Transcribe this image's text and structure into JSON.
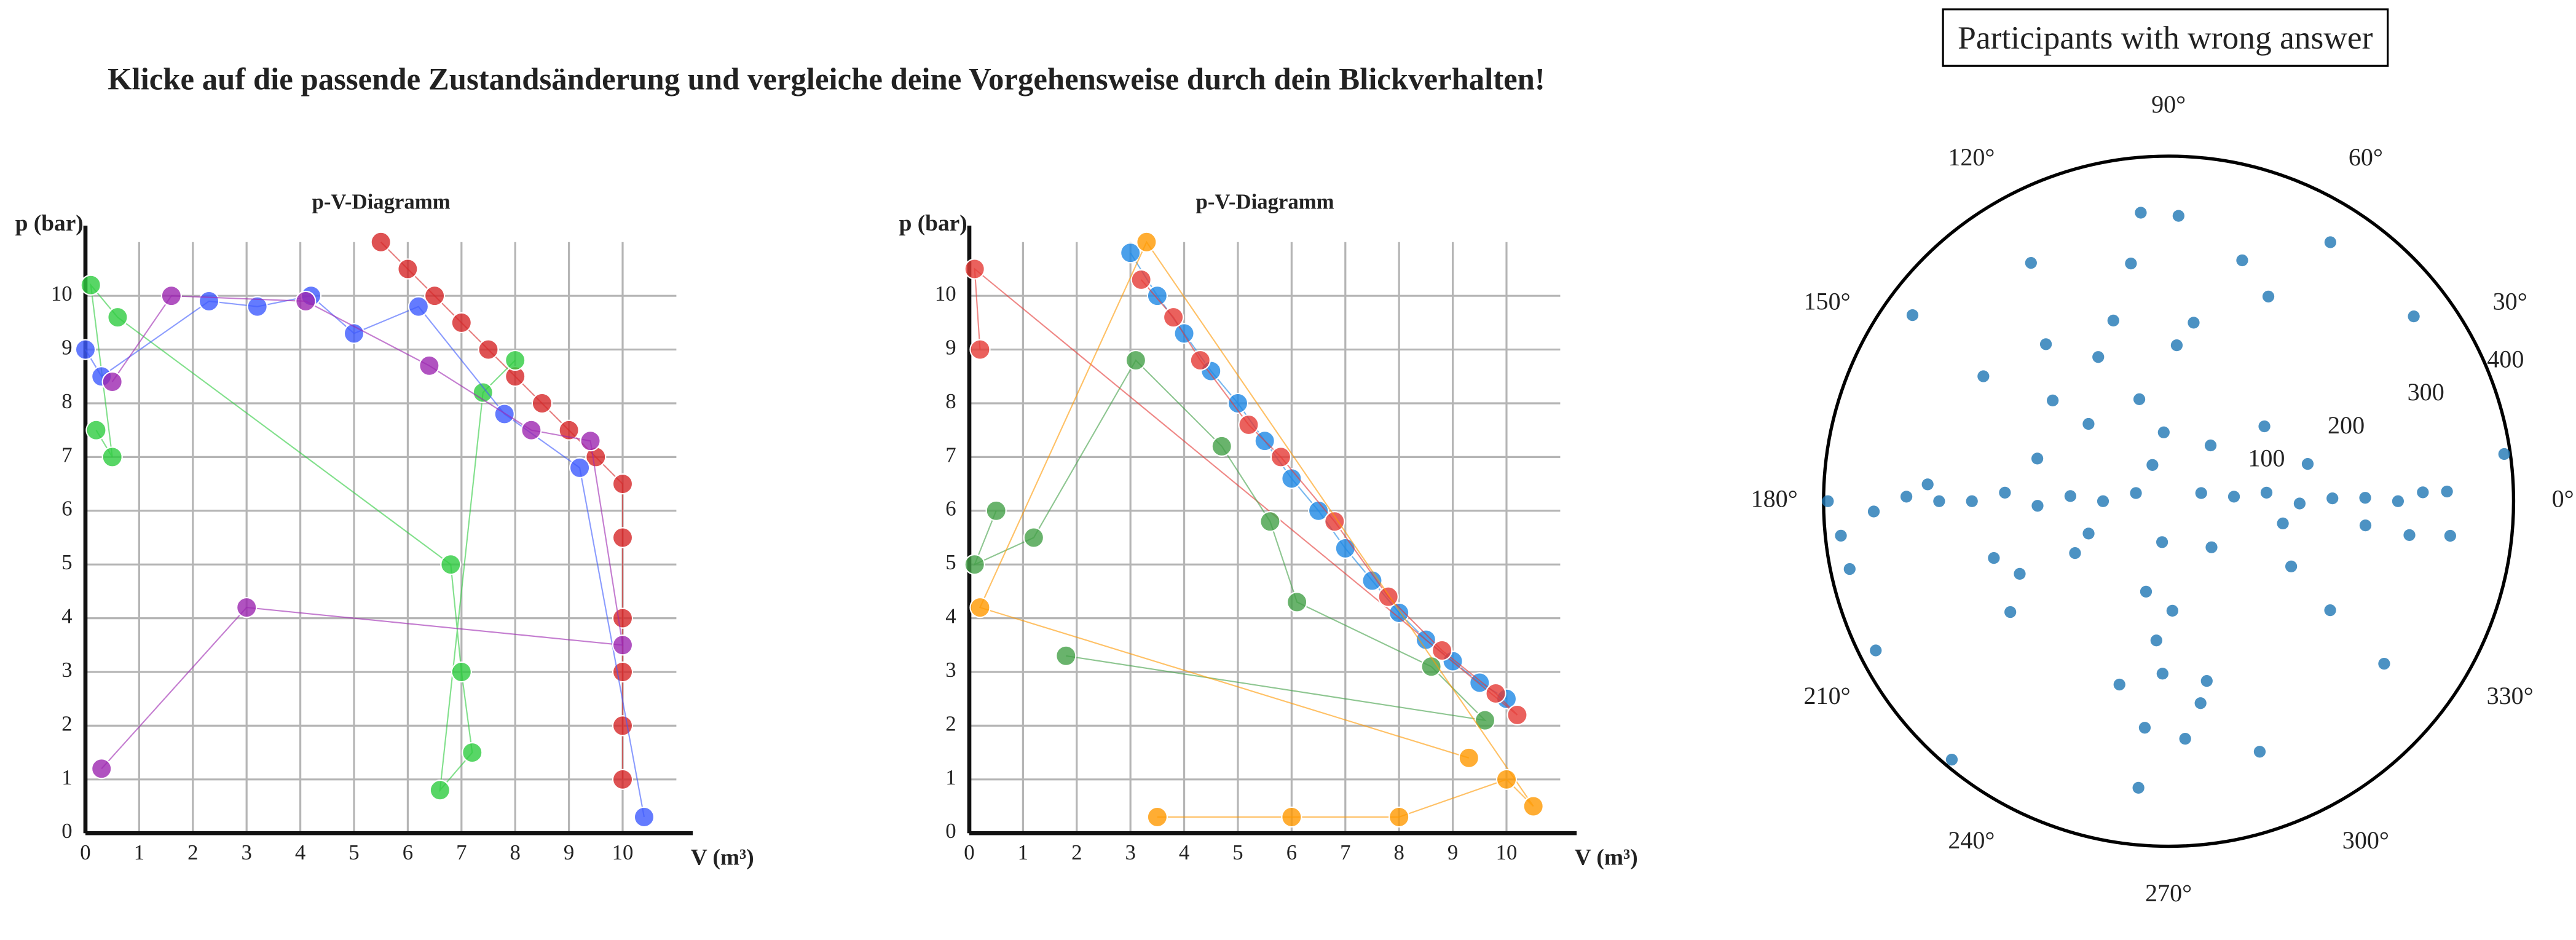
{
  "stimulus": {
    "title": "Klicke auf die passende Zustandsänderung und vergleiche deine Vorgehensweise durch dein Blickverhalten!"
  },
  "chart_data": [
    {
      "type": "scanpath",
      "title": "p-V-Diagramm",
      "y_label": "p (bar)",
      "x_label": "V (m³)",
      "xlim": [
        0,
        11
      ],
      "ylim": [
        0,
        11
      ],
      "xticks": [
        0,
        1,
        2,
        3,
        4,
        5,
        6,
        7,
        8,
        9,
        10
      ],
      "yticks": [
        0,
        1,
        2,
        3,
        4,
        5,
        6,
        7,
        8,
        9,
        10
      ],
      "grid": true,
      "series": [
        {
          "color": "#d62728",
          "x": [
            5.5,
            6,
            6.5,
            7,
            7.5,
            8,
            8.5,
            9,
            9.5,
            10,
            10,
            10,
            10,
            10,
            10
          ],
          "values": [
            11,
            10.5,
            10,
            9.5,
            9,
            8.5,
            8,
            7.5,
            7,
            6.5,
            5.5,
            4,
            3,
            2,
            1
          ]
        },
        {
          "color": "#2ecc40",
          "x": [
            0.2,
            0.5,
            0.1,
            0.6,
            6.8,
            7,
            7.2,
            6.6,
            7.4,
            8
          ],
          "values": [
            7.5,
            7,
            10.2,
            9.6,
            5,
            3,
            1.5,
            0.8,
            8.2,
            8.8
          ]
        },
        {
          "color": "#3d5afe",
          "x": [
            0,
            0.3,
            2.3,
            3.2,
            4.2,
            5,
            6.2,
            7.8,
            9.2,
            10.4
          ],
          "values": [
            9,
            8.5,
            9.9,
            9.8,
            10,
            9.3,
            9.8,
            7.8,
            6.8,
            0.3
          ]
        },
        {
          "color": "#9c27b0",
          "x": [
            0.5,
            1.6,
            4.1,
            6.4,
            8.3,
            9.4,
            10,
            3,
            0.3
          ],
          "values": [
            8.4,
            10,
            9.9,
            8.7,
            7.5,
            7.3,
            3.5,
            4.2,
            1.2
          ]
        }
      ]
    },
    {
      "type": "scanpath",
      "title": "p-V-Diagramm",
      "y_label": "p (bar)",
      "x_label": "V (m³)",
      "xlim": [
        0,
        11
      ],
      "ylim": [
        0,
        11
      ],
      "xticks": [
        0,
        1,
        2,
        3,
        4,
        5,
        6,
        7,
        8,
        9,
        10
      ],
      "yticks": [
        0,
        1,
        2,
        3,
        4,
        5,
        6,
        7,
        8,
        9,
        10
      ],
      "grid": true,
      "series": [
        {
          "color": "#1e88e5",
          "x": [
            3,
            3.5,
            4,
            4.5,
            5,
            5.5,
            6,
            6.5,
            7,
            7.5,
            8,
            8.5,
            9,
            9.5,
            10
          ],
          "values": [
            10.8,
            10,
            9.3,
            8.6,
            8,
            7.3,
            6.6,
            6,
            5.3,
            4.7,
            4.1,
            3.6,
            3.2,
            2.8,
            2.5
          ]
        },
        {
          "color": "#e53935",
          "x": [
            3.2,
            3.8,
            4.3,
            5.2,
            5.8,
            6.8,
            7.8,
            8.8,
            9.8,
            10.2,
            0.1,
            0.2
          ],
          "values": [
            10.3,
            9.6,
            8.8,
            7.6,
            7,
            5.8,
            4.4,
            3.4,
            2.6,
            2.2,
            10.5,
            9
          ]
        },
        {
          "color": "#43a047",
          "x": [
            0.5,
            0.1,
            1.2,
            3.1,
            4.7,
            5.6,
            6.1,
            8.6,
            9.6,
            1.8
          ],
          "values": [
            6,
            5,
            5.5,
            8.8,
            7.2,
            5.8,
            4.3,
            3.1,
            2.1,
            3.3
          ]
        },
        {
          "color": "#ff9800",
          "x": [
            3.5,
            6,
            8,
            10,
            10.5,
            3.3,
            0.2,
            9.3
          ],
          "values": [
            0.3,
            0.3,
            0.3,
            1,
            0.5,
            11,
            4.2,
            1.4
          ]
        }
      ]
    },
    {
      "type": "polar-scatter",
      "title": "Participants with wrong answer",
      "color": "#1f77b4",
      "rlim": [
        0,
        400
      ],
      "rticks": [
        100,
        200,
        300,
        400
      ],
      "thetaticks": [
        {
          "value": 0,
          "label": "0°"
        },
        {
          "value": 30,
          "label": "30°"
        },
        {
          "value": 60,
          "label": "60°"
        },
        {
          "value": 90,
          "label": "90°"
        },
        {
          "value": 120,
          "label": "120°"
        },
        {
          "value": 150,
          "label": "150°"
        },
        {
          "value": 180,
          "label": "180°"
        },
        {
          "value": 210,
          "label": "210°"
        },
        {
          "value": 240,
          "label": "240°"
        },
        {
          "value": 270,
          "label": "270°"
        },
        {
          "value": 300,
          "label": "300°"
        },
        {
          "value": 330,
          "label": "330°"
        }
      ],
      "theta": [
        95.5,
        88,
        58,
        120,
        99,
        73,
        144,
        64,
        37,
        107,
        82,
        128,
        116,
        87,
        146,
        139,
        106,
        136,
        162,
        94,
        114,
        15,
        53,
        38,
        14,
        4,
        5,
        359,
        1,
        1,
        0,
        2,
        2,
        352,
        353,
        349,
        8,
        353,
        166,
        180,
        177,
        182,
        177,
        180,
        180,
        179,
        182,
        180,
        186,
        192,
        176,
        198,
        215,
        207,
        230,
        209,
        261,
        256,
        272,
        265,
        268,
        255,
        282,
        264,
        274,
        279,
        290,
        264,
        323,
        326,
        332,
        202,
        313,
        206
      ],
      "values": [
        336,
        331,
        354,
        319,
        279,
        292,
        367,
        264,
        356,
        219,
        209,
        231,
        186,
        181,
        259,
        178,
        123,
        129,
        160,
        80,
        46,
        167,
        81,
        141,
        39,
        76,
        114,
        152,
        190,
        228,
        266,
        295,
        323,
        282,
        230,
        135,
        393,
        329,
        39,
        76,
        114,
        152,
        190,
        228,
        266,
        304,
        342,
        395,
        382,
        378,
        280,
        213,
        224,
        381,
        391,
        124,
        48,
        108,
        127,
        162,
        200,
        220,
        213,
        264,
        276,
        237,
        309,
        334,
        313,
        226,
        161,
        100,
        73,
        192
      ]
    }
  ]
}
